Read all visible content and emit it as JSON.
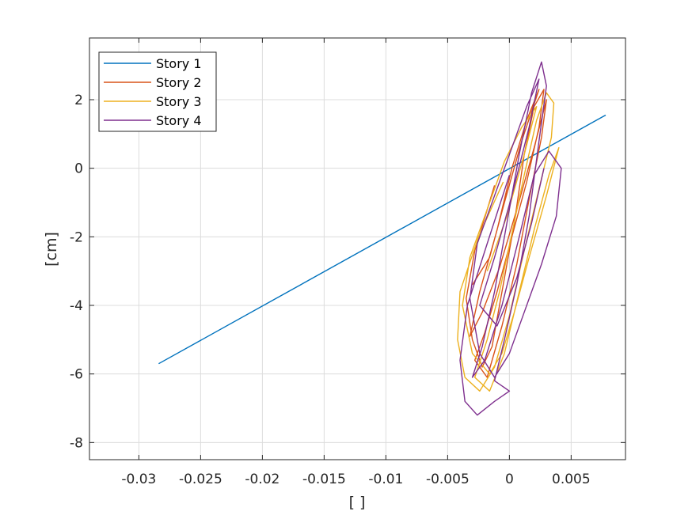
{
  "chart_data": {
    "type": "line",
    "xlabel": "[ ]",
    "ylabel": "[cm]",
    "xlim": [
      -0.034,
      0.0094
    ],
    "ylim": [
      -8.5,
      3.8
    ],
    "grid": true,
    "legend_position": "top-left",
    "xticks": [
      -0.03,
      -0.025,
      -0.02,
      -0.015,
      -0.01,
      -0.005,
      0,
      0.005
    ],
    "xtick_labels": [
      "-0.03",
      "-0.025",
      "-0.02",
      "-0.015",
      "-0.01",
      "-0.005",
      "0",
      "0.005"
    ],
    "yticks": [
      2,
      0,
      -2,
      -4,
      -6,
      -8
    ],
    "ytick_labels": [
      "2",
      "0",
      "-2",
      "-4",
      "-6",
      "-8"
    ],
    "series": [
      {
        "name": "Story 1",
        "color": "#0072BD",
        "points": [
          [
            -0.0284,
            -5.7
          ],
          [
            0.0078,
            1.55
          ]
        ]
      },
      {
        "name": "Story 2",
        "color": "#D95319",
        "points": [
          [
            -0.0012,
            -0.5
          ],
          [
            -0.0028,
            -2.4
          ],
          [
            -0.0035,
            -3.8
          ],
          [
            -0.003,
            -5.0
          ],
          [
            -0.0022,
            -5.8
          ],
          [
            -0.0014,
            -5.2
          ],
          [
            -0.0006,
            -3.6
          ],
          [
            0.0004,
            -1.6
          ],
          [
            0.0012,
            0.4
          ],
          [
            0.002,
            1.8
          ],
          [
            0.0028,
            2.3
          ],
          [
            0.0024,
            1.2
          ],
          [
            0.0014,
            -0.4
          ],
          [
            0.0002,
            -2.0
          ],
          [
            -0.001,
            -3.6
          ],
          [
            -0.002,
            -4.8
          ],
          [
            -0.0028,
            -5.6
          ],
          [
            -0.0018,
            -6.1
          ],
          [
            -0.0006,
            -4.6
          ],
          [
            0.0006,
            -2.8
          ],
          [
            0.0016,
            -0.9
          ],
          [
            0.0026,
            0.9
          ],
          [
            0.003,
            2.0
          ],
          [
            0.002,
            0.6
          ],
          [
            0.0006,
            -1.2
          ],
          [
            -0.0008,
            -2.9
          ],
          [
            -0.0022,
            -4.2
          ],
          [
            -0.0032,
            -4.9
          ],
          [
            -0.0024,
            -3.6
          ],
          [
            -0.001,
            -1.8
          ],
          [
            0.0002,
            0.0
          ],
          [
            0.0014,
            1.4
          ],
          [
            0.0024,
            2.3
          ],
          [
            0.001,
            0.8
          ],
          [
            -0.0004,
            -1.0
          ],
          [
            -0.0016,
            -2.6
          ],
          [
            -0.003,
            -3.4
          ]
        ]
      },
      {
        "name": "Story 3",
        "color": "#EDB120",
        "points": [
          [
            -0.0005,
            -0.4
          ],
          [
            -0.0025,
            -2.0
          ],
          [
            -0.004,
            -3.6
          ],
          [
            -0.0042,
            -5.0
          ],
          [
            -0.0036,
            -6.1
          ],
          [
            -0.0024,
            -6.5
          ],
          [
            -0.0012,
            -5.8
          ],
          [
            0.0,
            -4.3
          ],
          [
            0.0012,
            -2.4
          ],
          [
            0.0024,
            -0.6
          ],
          [
            0.0034,
            0.9
          ],
          [
            0.0036,
            1.9
          ],
          [
            0.003,
            2.2
          ],
          [
            0.0022,
            1.4
          ],
          [
            0.0012,
            -0.2
          ],
          [
            0.0002,
            -1.9
          ],
          [
            -0.0008,
            -3.6
          ],
          [
            -0.0018,
            -5.0
          ],
          [
            -0.0028,
            -6.1
          ],
          [
            -0.0016,
            -6.5
          ],
          [
            -0.0004,
            -5.4
          ],
          [
            0.0008,
            -3.6
          ],
          [
            0.002,
            -1.8
          ],
          [
            0.0032,
            -0.2
          ],
          [
            0.004,
            0.6
          ],
          [
            0.003,
            -0.8
          ],
          [
            0.0016,
            -2.6
          ],
          [
            0.0004,
            -4.2
          ],
          [
            -0.0006,
            -5.4
          ],
          [
            -0.0016,
            -6.0
          ],
          [
            -0.003,
            -5.4
          ],
          [
            -0.0038,
            -4.0
          ],
          [
            -0.0032,
            -2.6
          ],
          [
            -0.0018,
            -1.2
          ],
          [
            -0.0004,
            0.2
          ],
          [
            0.001,
            1.2
          ],
          [
            0.0022,
            1.8
          ],
          [
            0.0012,
            0.4
          ],
          [
            -0.0002,
            -1.4
          ],
          [
            -0.0018,
            -3.0
          ]
        ]
      },
      {
        "name": "Story 4",
        "color": "#7E2F8E",
        "points": [
          [
            0.0,
            -0.2
          ],
          [
            -0.0018,
            -2.2
          ],
          [
            -0.0034,
            -4.0
          ],
          [
            -0.004,
            -5.6
          ],
          [
            -0.0036,
            -6.8
          ],
          [
            -0.0026,
            -7.2
          ],
          [
            -0.0012,
            -6.8
          ],
          [
            0.0,
            -6.5
          ],
          [
            -0.0012,
            -6.2
          ],
          [
            -0.0004,
            -5.0
          ],
          [
            0.0006,
            -3.4
          ],
          [
            0.0016,
            -1.4
          ],
          [
            0.0024,
            0.8
          ],
          [
            0.003,
            2.4
          ],
          [
            0.0026,
            3.1
          ],
          [
            0.0018,
            2.2
          ],
          [
            0.0008,
            0.4
          ],
          [
            -0.0002,
            -1.6
          ],
          [
            -0.0012,
            -3.6
          ],
          [
            -0.0022,
            -5.2
          ],
          [
            -0.003,
            -6.1
          ],
          [
            -0.002,
            -5.6
          ],
          [
            -0.0006,
            -4.0
          ],
          [
            0.0008,
            -2.0
          ],
          [
            0.002,
            -0.2
          ],
          [
            0.0032,
            0.5
          ],
          [
            0.0042,
            0.0
          ],
          [
            0.0038,
            -1.4
          ],
          [
            0.0026,
            -2.8
          ],
          [
            0.0012,
            -4.2
          ],
          [
            0.0,
            -5.4
          ],
          [
            -0.0012,
            -6.1
          ],
          [
            -0.0024,
            -5.4
          ],
          [
            -0.0032,
            -3.8
          ],
          [
            -0.0026,
            -2.2
          ],
          [
            -0.0012,
            -0.8
          ],
          [
            0.0002,
            0.6
          ],
          [
            0.0014,
            1.8
          ],
          [
            0.0024,
            2.6
          ],
          [
            0.0016,
            1.2
          ],
          [
            0.0002,
            -0.8
          ],
          [
            -0.0012,
            -2.6
          ],
          [
            -0.0024,
            -4.0
          ],
          [
            -0.001,
            -4.6
          ],
          [
            0.0006,
            -3.2
          ],
          [
            0.0018,
            -1.6
          ],
          [
            0.0028,
            0.0
          ]
        ]
      }
    ]
  }
}
